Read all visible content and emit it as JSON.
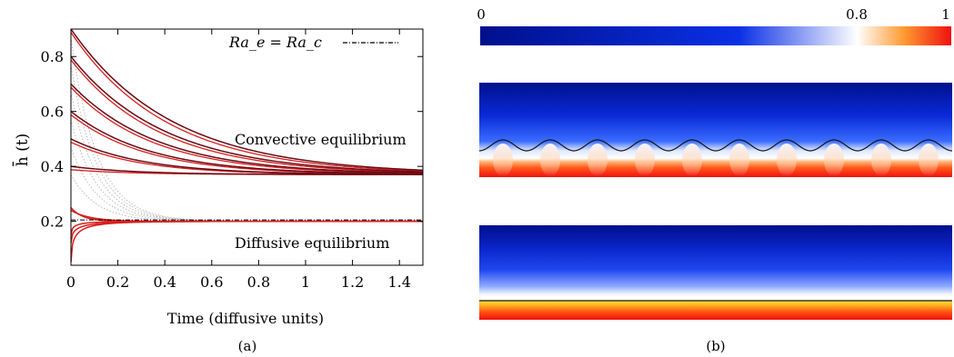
{
  "panel_a_label": "(a)",
  "panel_b_label": "(b)",
  "chart_data": [
    {
      "type": "line",
      "xlabel": "Time (diffusive units)",
      "ylabel": "h̄ (t)",
      "xlim": [
        0,
        1.5
      ],
      "ylim": [
        0.04,
        0.9
      ],
      "xticks": [
        0,
        0.2,
        0.4,
        0.6,
        0.8,
        1,
        1.2,
        1.4
      ],
      "yticks": [
        0.2,
        0.4,
        0.6,
        0.8
      ],
      "xtick_labels": [
        "0",
        "0.2",
        "0.4",
        "0.6",
        "0.8",
        "1",
        "1.2",
        "1.4"
      ],
      "ytick_labels": [
        "0.2",
        "0.4",
        "0.6",
        "0.8"
      ],
      "grid": false,
      "legend": "top-right",
      "legend_label": "Ra_e = Ra_c",
      "annotations": [
        "Convective equilibrium",
        "Diffusive equilibrium"
      ],
      "threshold": {
        "y": 0.205
      },
      "convective_equilibrium": 0.37,
      "diffusive_equilibrium": 0.2,
      "initial_heights_convective": [
        0.9,
        0.8,
        0.7,
        0.6,
        0.5,
        0.4
      ],
      "initial_heights_diffusive": [
        0.25,
        0.05
      ],
      "colors": {
        "convective_curve": "#6b0a14",
        "diffusive_curve": "#d81e1e",
        "dotted_curve": "#aaaaaa"
      }
    },
    {
      "type": "heatmap",
      "colorbar": {
        "min_label": "0",
        "mid_label": "0.8",
        "max_label": "1",
        "stops": [
          {
            "value": 0,
            "color": "#00108c"
          },
          {
            "value": 0.55,
            "color": "#0a30e6"
          },
          {
            "value": 0.8,
            "color": "#ffffff"
          },
          {
            "value": 0.9,
            "color": "#ff9a30"
          },
          {
            "value": 1,
            "color": "#f01010"
          }
        ]
      },
      "fields": [
        {
          "interface": "wavy",
          "wave_count": 10
        },
        {
          "interface": "flat"
        }
      ]
    }
  ]
}
